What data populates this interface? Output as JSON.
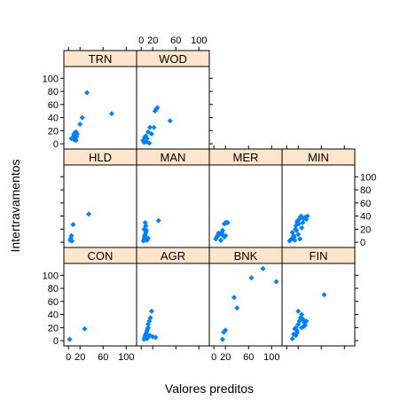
{
  "chart_data": {
    "type": "scatter",
    "title": "",
    "xlabel": "Valores preditos",
    "ylabel": "Intertravamentos",
    "xlim": [
      -8,
      118
    ],
    "ylim": [
      -8,
      118
    ],
    "xticks": [
      0,
      20,
      60,
      100
    ],
    "xtick_labels": [
      "0",
      "20",
      "60",
      "100"
    ],
    "yticks": [
      0,
      20,
      40,
      60,
      80,
      100
    ],
    "yticks_mid": [
      0,
      20,
      40,
      60,
      80,
      100
    ],
    "yticks_mid_labels": [
      "0",
      "20",
      "40",
      "60",
      "80",
      "100"
    ],
    "point_color": "#0080ff",
    "strip_color": "#ffe5cc",
    "panels": [
      {
        "label": "TRN",
        "row": 0,
        "col": 0,
        "x": [
          5,
          8,
          10,
          12,
          9,
          11,
          13,
          14,
          15,
          13,
          10,
          20,
          24,
          32,
          75
        ],
        "y": [
          8,
          10,
          12,
          7,
          14,
          17,
          5,
          11,
          15,
          18,
          6,
          30,
          40,
          78,
          46
        ]
      },
      {
        "label": "WOD",
        "row": 0,
        "col": 1,
        "x": [
          3,
          5,
          6,
          8,
          9,
          10,
          12,
          14,
          18,
          15,
          22,
          24,
          26,
          28,
          50
        ],
        "y": [
          5,
          2,
          10,
          12,
          3,
          8,
          18,
          1,
          15,
          25,
          25,
          50,
          53,
          55,
          35
        ]
      },
      {
        "label": "HLD",
        "row": 1,
        "col": 0,
        "x": [
          3,
          4,
          5,
          6,
          8,
          35
        ],
        "y": [
          3,
          6,
          10,
          2,
          27,
          43
        ]
      },
      {
        "label": "MAN",
        "row": 1,
        "col": 1,
        "x": [
          4,
          5,
          6,
          6,
          7,
          8,
          9,
          5,
          10,
          12,
          8,
          7,
          30
        ],
        "y": [
          2,
          5,
          8,
          10,
          12,
          15,
          18,
          20,
          3,
          6,
          25,
          30,
          33
        ]
      },
      {
        "label": "MER",
        "row": 1,
        "col": 2,
        "x": [
          3,
          5,
          6,
          8,
          10,
          12,
          14,
          15,
          16,
          18,
          20,
          22,
          24,
          18,
          20
        ],
        "y": [
          5,
          8,
          10,
          14,
          12,
          3,
          15,
          18,
          10,
          28,
          30,
          30,
          30,
          8,
          10
        ]
      },
      {
        "label": "MIN",
        "row": 1,
        "col": 3,
        "x": [
          5,
          8,
          10,
          12,
          13,
          14,
          15,
          16,
          17,
          18,
          19,
          20,
          21,
          22,
          23,
          24,
          25,
          26,
          28,
          30,
          32,
          34,
          36
        ],
        "y": [
          2,
          5,
          15,
          10,
          8,
          3,
          20,
          25,
          18,
          30,
          33,
          12,
          28,
          35,
          5,
          38,
          40,
          22,
          30,
          36,
          38,
          35,
          40
        ]
      },
      {
        "label": "CON",
        "row": 2,
        "col": 0,
        "x": [
          2,
          28
        ],
        "y": [
          2,
          18
        ]
      },
      {
        "label": "AGR",
        "row": 2,
        "col": 1,
        "x": [
          5,
          6,
          7,
          8,
          9,
          10,
          10,
          11,
          12,
          12,
          13,
          14,
          15,
          16,
          18,
          20,
          25
        ],
        "y": [
          2,
          5,
          8,
          10,
          12,
          15,
          3,
          18,
          20,
          25,
          6,
          30,
          8,
          35,
          45,
          6,
          5
        ]
      },
      {
        "label": "BNK",
        "row": 2,
        "col": 2,
        "x": [
          15,
          17,
          20,
          35,
          40,
          65,
          85,
          108
        ],
        "y": [
          2,
          13,
          16,
          66,
          50,
          96,
          110,
          90
        ]
      },
      {
        "label": "FIN",
        "row": 2,
        "col": 3,
        "x": [
          10,
          12,
          14,
          16,
          18,
          20,
          22,
          24,
          26,
          28,
          30,
          32,
          34,
          16,
          18,
          20,
          26,
          30,
          65
        ],
        "y": [
          3,
          10,
          18,
          20,
          15,
          25,
          30,
          35,
          20,
          33,
          28,
          24,
          30,
          8,
          12,
          45,
          40,
          22,
          70
        ]
      }
    ]
  }
}
